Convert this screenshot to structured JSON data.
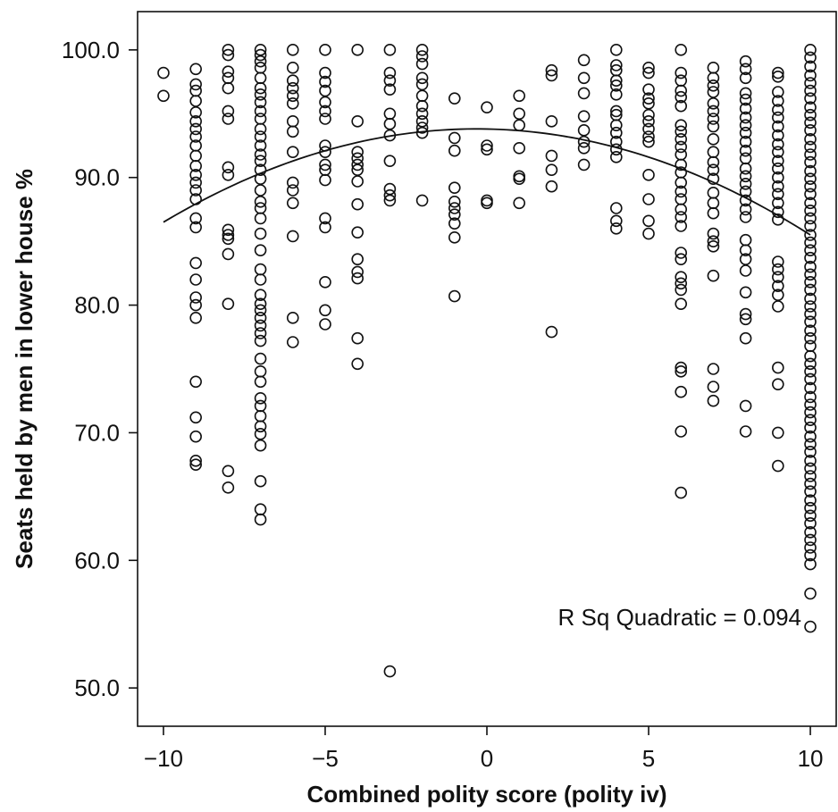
{
  "chart_data": {
    "type": "scatter",
    "xlabel": "Combined polity score (polity iv)",
    "ylabel": "Seats held by men in lower house %",
    "xlim": [
      -10.8,
      10.8
    ],
    "ylim": [
      47,
      103
    ],
    "x_ticks": [
      -10,
      -5,
      0,
      5,
      10
    ],
    "y_ticks": [
      50,
      60,
      70,
      80,
      90,
      100
    ],
    "x_tick_labels": [
      "−10",
      "−5",
      "0",
      "5",
      "10"
    ],
    "y_tick_labels": [
      "50.0",
      "60.0",
      "70.0",
      "80.0",
      "90.0",
      "100.0"
    ],
    "annotation": "R Sq Quadratic = 0.094",
    "fit": {
      "type": "quadratic",
      "a": 93.8,
      "b": -0.05,
      "c": -0.078,
      "x_range": [
        -10,
        10
      ]
    },
    "points": [
      [
        -10,
        98.2
      ],
      [
        -10,
        96.4
      ],
      [
        -9,
        98.5
      ],
      [
        -9,
        97.3
      ],
      [
        -9,
        96.8
      ],
      [
        -9,
        96.0
      ],
      [
        -9,
        95.1
      ],
      [
        -9,
        94.4
      ],
      [
        -9,
        93.8
      ],
      [
        -9,
        93.2
      ],
      [
        -9,
        92.5
      ],
      [
        -9,
        91.7
      ],
      [
        -9,
        90.9
      ],
      [
        -9,
        90.2
      ],
      [
        -9,
        89.6
      ],
      [
        -9,
        89.0
      ],
      [
        -9,
        88.3
      ],
      [
        -9,
        86.8
      ],
      [
        -9,
        86.1
      ],
      [
        -9,
        83.3
      ],
      [
        -9,
        82.0
      ],
      [
        -9,
        80.6
      ],
      [
        -9,
        80.0
      ],
      [
        -9,
        79.0
      ],
      [
        -9,
        74.0
      ],
      [
        -9,
        71.2
      ],
      [
        -9,
        69.7
      ],
      [
        -9,
        67.8
      ],
      [
        -9,
        67.5
      ],
      [
        -8,
        100.0
      ],
      [
        -8,
        99.6
      ],
      [
        -8,
        98.3
      ],
      [
        -8,
        97.8
      ],
      [
        -8,
        97.0
      ],
      [
        -8,
        95.2
      ],
      [
        -8,
        94.6
      ],
      [
        -8,
        90.8
      ],
      [
        -8,
        90.2
      ],
      [
        -8,
        85.9
      ],
      [
        -8,
        85.5
      ],
      [
        -8,
        85.2
      ],
      [
        -8,
        84.0
      ],
      [
        -8,
        80.1
      ],
      [
        -8,
        67.0
      ],
      [
        -8,
        65.7
      ],
      [
        -7,
        100.0
      ],
      [
        -7,
        99.6
      ],
      [
        -7,
        99.1
      ],
      [
        -7,
        98.6
      ],
      [
        -7,
        97.8
      ],
      [
        -7,
        97.0
      ],
      [
        -7,
        96.5
      ],
      [
        -7,
        95.9
      ],
      [
        -7,
        95.2
      ],
      [
        -7,
        94.6
      ],
      [
        -7,
        93.8
      ],
      [
        -7,
        93.2
      ],
      [
        -7,
        92.5
      ],
      [
        -7,
        91.8
      ],
      [
        -7,
        91.3
      ],
      [
        -7,
        90.6
      ],
      [
        -7,
        89.9
      ],
      [
        -7,
        89.0
      ],
      [
        -7,
        88.1
      ],
      [
        -7,
        87.6
      ],
      [
        -7,
        86.8
      ],
      [
        -7,
        85.6
      ],
      [
        -7,
        84.3
      ],
      [
        -7,
        82.8
      ],
      [
        -7,
        82.0
      ],
      [
        -7,
        80.8
      ],
      [
        -7,
        80.1
      ],
      [
        -7,
        79.6
      ],
      [
        -7,
        79.0
      ],
      [
        -7,
        78.4
      ],
      [
        -7,
        77.8
      ],
      [
        -7,
        77.2
      ],
      [
        -7,
        75.8
      ],
      [
        -7,
        74.8
      ],
      [
        -7,
        74.0
      ],
      [
        -7,
        72.7
      ],
      [
        -7,
        72.1
      ],
      [
        -7,
        71.3
      ],
      [
        -7,
        70.5
      ],
      [
        -7,
        69.9
      ],
      [
        -7,
        69.0
      ],
      [
        -7,
        66.2
      ],
      [
        -7,
        64.0
      ],
      [
        -7,
        63.2
      ],
      [
        -6,
        100.0
      ],
      [
        -6,
        98.6
      ],
      [
        -6,
        97.6
      ],
      [
        -6,
        97.0
      ],
      [
        -6,
        96.4
      ],
      [
        -6,
        95.8
      ],
      [
        -6,
        94.4
      ],
      [
        -6,
        93.6
      ],
      [
        -6,
        92.0
      ],
      [
        -6,
        89.6
      ],
      [
        -6,
        89.0
      ],
      [
        -6,
        88.0
      ],
      [
        -6,
        85.4
      ],
      [
        -6,
        79.0
      ],
      [
        -6,
        77.1
      ],
      [
        -5,
        100.0
      ],
      [
        -5,
        98.2
      ],
      [
        -5,
        97.5
      ],
      [
        -5,
        96.8
      ],
      [
        -5,
        95.9
      ],
      [
        -5,
        95.2
      ],
      [
        -5,
        94.6
      ],
      [
        -5,
        92.5
      ],
      [
        -5,
        92.0
      ],
      [
        -5,
        91.0
      ],
      [
        -5,
        90.6
      ],
      [
        -5,
        89.8
      ],
      [
        -5,
        86.8
      ],
      [
        -5,
        86.1
      ],
      [
        -5,
        81.8
      ],
      [
        -5,
        79.6
      ],
      [
        -5,
        78.5
      ],
      [
        -4,
        100.0
      ],
      [
        -4,
        94.4
      ],
      [
        -4,
        92.0
      ],
      [
        -4,
        91.5
      ],
      [
        -4,
        91.0
      ],
      [
        -4,
        90.6
      ],
      [
        -4,
        89.7
      ],
      [
        -4,
        87.9
      ],
      [
        -4,
        85.7
      ],
      [
        -4,
        83.6
      ],
      [
        -4,
        82.6
      ],
      [
        -4,
        82.1
      ],
      [
        -4,
        77.4
      ],
      [
        -4,
        75.4
      ],
      [
        -3,
        100.0
      ],
      [
        -3,
        98.2
      ],
      [
        -3,
        97.6
      ],
      [
        -3,
        96.9
      ],
      [
        -3,
        95.0
      ],
      [
        -3,
        94.2
      ],
      [
        -3,
        93.3
      ],
      [
        -3,
        91.3
      ],
      [
        -3,
        89.1
      ],
      [
        -3,
        88.6
      ],
      [
        -3,
        88.2
      ],
      [
        -3,
        51.3
      ],
      [
        -2,
        100.0
      ],
      [
        -2,
        99.5
      ],
      [
        -2,
        98.9
      ],
      [
        -2,
        97.8
      ],
      [
        -2,
        97.3
      ],
      [
        -2,
        96.4
      ],
      [
        -2,
        95.6
      ],
      [
        -2,
        95.0
      ],
      [
        -2,
        94.4
      ],
      [
        -2,
        93.9
      ],
      [
        -2,
        93.5
      ],
      [
        -2,
        88.2
      ],
      [
        -1,
        96.2
      ],
      [
        -1,
        93.1
      ],
      [
        -1,
        92.1
      ],
      [
        -1,
        89.2
      ],
      [
        -1,
        88.1
      ],
      [
        -1,
        87.6
      ],
      [
        -1,
        87.1
      ],
      [
        -1,
        86.4
      ],
      [
        -1,
        85.3
      ],
      [
        -1,
        80.7
      ],
      [
        0,
        95.5
      ],
      [
        0,
        92.5
      ],
      [
        0,
        92.2
      ],
      [
        0,
        88.2
      ],
      [
        0,
        88.0
      ],
      [
        1,
        96.4
      ],
      [
        1,
        95.0
      ],
      [
        1,
        94.1
      ],
      [
        1,
        92.3
      ],
      [
        1,
        90.1
      ],
      [
        1,
        89.9
      ],
      [
        1,
        88.0
      ],
      [
        2,
        98.4
      ],
      [
        2,
        98.0
      ],
      [
        2,
        94.4
      ],
      [
        2,
        91.7
      ],
      [
        2,
        90.6
      ],
      [
        2,
        89.3
      ],
      [
        2,
        77.9
      ],
      [
        3,
        99.2
      ],
      [
        3,
        97.8
      ],
      [
        3,
        96.6
      ],
      [
        3,
        94.8
      ],
      [
        3,
        93.7
      ],
      [
        3,
        92.8
      ],
      [
        3,
        92.3
      ],
      [
        3,
        91.0
      ],
      [
        4,
        100.0
      ],
      [
        4,
        98.8
      ],
      [
        4,
        98.4
      ],
      [
        4,
        97.6
      ],
      [
        4,
        97.2
      ],
      [
        4,
        96.5
      ],
      [
        4,
        95.2
      ],
      [
        4,
        94.9
      ],
      [
        4,
        94.1
      ],
      [
        4,
        93.5
      ],
      [
        4,
        92.8
      ],
      [
        4,
        92.2
      ],
      [
        4,
        91.6
      ],
      [
        4,
        87.6
      ],
      [
        4,
        86.6
      ],
      [
        4,
        86.0
      ],
      [
        5,
        98.6
      ],
      [
        5,
        98.2
      ],
      [
        5,
        96.9
      ],
      [
        5,
        96.2
      ],
      [
        5,
        95.8
      ],
      [
        5,
        94.9
      ],
      [
        5,
        94.4
      ],
      [
        5,
        93.8
      ],
      [
        5,
        93.2
      ],
      [
        5,
        92.8
      ],
      [
        5,
        90.2
      ],
      [
        5,
        88.3
      ],
      [
        5,
        86.6
      ],
      [
        5,
        85.6
      ],
      [
        6,
        100.0
      ],
      [
        6,
        98.2
      ],
      [
        6,
        97.6
      ],
      [
        6,
        96.8
      ],
      [
        6,
        96.3
      ],
      [
        6,
        95.6
      ],
      [
        6,
        94.1
      ],
      [
        6,
        93.6
      ],
      [
        6,
        93.0
      ],
      [
        6,
        92.4
      ],
      [
        6,
        91.8
      ],
      [
        6,
        91.0
      ],
      [
        6,
        90.4
      ],
      [
        6,
        89.6
      ],
      [
        6,
        88.9
      ],
      [
        6,
        88.3
      ],
      [
        6,
        87.5
      ],
      [
        6,
        86.9
      ],
      [
        6,
        86.2
      ],
      [
        6,
        84.1
      ],
      [
        6,
        83.6
      ],
      [
        6,
        82.2
      ],
      [
        6,
        81.7
      ],
      [
        6,
        81.2
      ],
      [
        6,
        80.1
      ],
      [
        6,
        75.1
      ],
      [
        6,
        74.8
      ],
      [
        6,
        73.2
      ],
      [
        6,
        70.1
      ],
      [
        6,
        65.3
      ],
      [
        7,
        98.6
      ],
      [
        7,
        97.8
      ],
      [
        7,
        97.2
      ],
      [
        7,
        96.7
      ],
      [
        7,
        95.8
      ],
      [
        7,
        95.2
      ],
      [
        7,
        94.6
      ],
      [
        7,
        94.0
      ],
      [
        7,
        93.0
      ],
      [
        7,
        92.0
      ],
      [
        7,
        91.2
      ],
      [
        7,
        90.6
      ],
      [
        7,
        89.9
      ],
      [
        7,
        88.8
      ],
      [
        7,
        88.0
      ],
      [
        7,
        87.2
      ],
      [
        7,
        85.6
      ],
      [
        7,
        85.0
      ],
      [
        7,
        84.6
      ],
      [
        7,
        82.3
      ],
      [
        7,
        75.0
      ],
      [
        7,
        73.6
      ],
      [
        7,
        72.5
      ],
      [
        8,
        99.1
      ],
      [
        8,
        98.5
      ],
      [
        8,
        97.8
      ],
      [
        8,
        96.6
      ],
      [
        8,
        96.1
      ],
      [
        8,
        95.4
      ],
      [
        8,
        94.7
      ],
      [
        8,
        94.1
      ],
      [
        8,
        93.5
      ],
      [
        8,
        92.8
      ],
      [
        8,
        92.1
      ],
      [
        8,
        91.5
      ],
      [
        8,
        90.7
      ],
      [
        8,
        90.1
      ],
      [
        8,
        89.5
      ],
      [
        8,
        88.9
      ],
      [
        8,
        88.2
      ],
      [
        8,
        87.5
      ],
      [
        8,
        86.9
      ],
      [
        8,
        85.1
      ],
      [
        8,
        84.3
      ],
      [
        8,
        83.6
      ],
      [
        8,
        82.7
      ],
      [
        8,
        81.0
      ],
      [
        8,
        79.3
      ],
      [
        8,
        78.9
      ],
      [
        8,
        77.4
      ],
      [
        8,
        72.1
      ],
      [
        8,
        70.1
      ],
      [
        9,
        98.2
      ],
      [
        9,
        97.9
      ],
      [
        9,
        96.7
      ],
      [
        9,
        96.0
      ],
      [
        9,
        95.3
      ],
      [
        9,
        94.7
      ],
      [
        9,
        94.0
      ],
      [
        9,
        93.3
      ],
      [
        9,
        92.6
      ],
      [
        9,
        92.0
      ],
      [
        9,
        91.3
      ],
      [
        9,
        90.7
      ],
      [
        9,
        90.0
      ],
      [
        9,
        89.3
      ],
      [
        9,
        88.7
      ],
      [
        9,
        88.0
      ],
      [
        9,
        87.3
      ],
      [
        9,
        86.7
      ],
      [
        9,
        83.4
      ],
      [
        9,
        82.8
      ],
      [
        9,
        82.2
      ],
      [
        9,
        81.5
      ],
      [
        9,
        80.8
      ],
      [
        9,
        79.9
      ],
      [
        9,
        75.1
      ],
      [
        9,
        73.8
      ],
      [
        9,
        70.0
      ],
      [
        9,
        67.4
      ],
      [
        10,
        100.0
      ],
      [
        10,
        99.4
      ],
      [
        10,
        98.7
      ],
      [
        10,
        98.0
      ],
      [
        10,
        97.4
      ],
      [
        10,
        96.8
      ],
      [
        10,
        96.2
      ],
      [
        10,
        95.5
      ],
      [
        10,
        94.9
      ],
      [
        10,
        94.3
      ],
      [
        10,
        93.7
      ],
      [
        10,
        93.0
      ],
      [
        10,
        92.4
      ],
      [
        10,
        91.8
      ],
      [
        10,
        91.2
      ],
      [
        10,
        90.5
      ],
      [
        10,
        89.9
      ],
      [
        10,
        89.3
      ],
      [
        10,
        88.7
      ],
      [
        10,
        88.0
      ],
      [
        10,
        87.4
      ],
      [
        10,
        86.8
      ],
      [
        10,
        86.2
      ],
      [
        10,
        85.5
      ],
      [
        10,
        84.9
      ],
      [
        10,
        84.3
      ],
      [
        10,
        83.7
      ],
      [
        10,
        83.0
      ],
      [
        10,
        82.4
      ],
      [
        10,
        81.8
      ],
      [
        10,
        81.2
      ],
      [
        10,
        80.5
      ],
      [
        10,
        79.9
      ],
      [
        10,
        79.3
      ],
      [
        10,
        78.7
      ],
      [
        10,
        78.0
      ],
      [
        10,
        77.4
      ],
      [
        10,
        76.8
      ],
      [
        10,
        76.0
      ],
      [
        10,
        75.4
      ],
      [
        10,
        74.8
      ],
      [
        10,
        74.2
      ],
      [
        10,
        73.5
      ],
      [
        10,
        72.8
      ],
      [
        10,
        72.2
      ],
      [
        10,
        71.6
      ],
      [
        10,
        71.0
      ],
      [
        10,
        70.4
      ],
      [
        10,
        69.7
      ],
      [
        10,
        69.1
      ],
      [
        10,
        68.5
      ],
      [
        10,
        67.8
      ],
      [
        10,
        67.2
      ],
      [
        10,
        66.6
      ],
      [
        10,
        66.0
      ],
      [
        10,
        65.4
      ],
      [
        10,
        64.7
      ],
      [
        10,
        64.1
      ],
      [
        10,
        63.5
      ],
      [
        10,
        62.9
      ],
      [
        10,
        62.2
      ],
      [
        10,
        61.6
      ],
      [
        10,
        61.0
      ],
      [
        10,
        60.4
      ],
      [
        10,
        59.7
      ],
      [
        10,
        57.4
      ],
      [
        10,
        54.8
      ]
    ]
  }
}
